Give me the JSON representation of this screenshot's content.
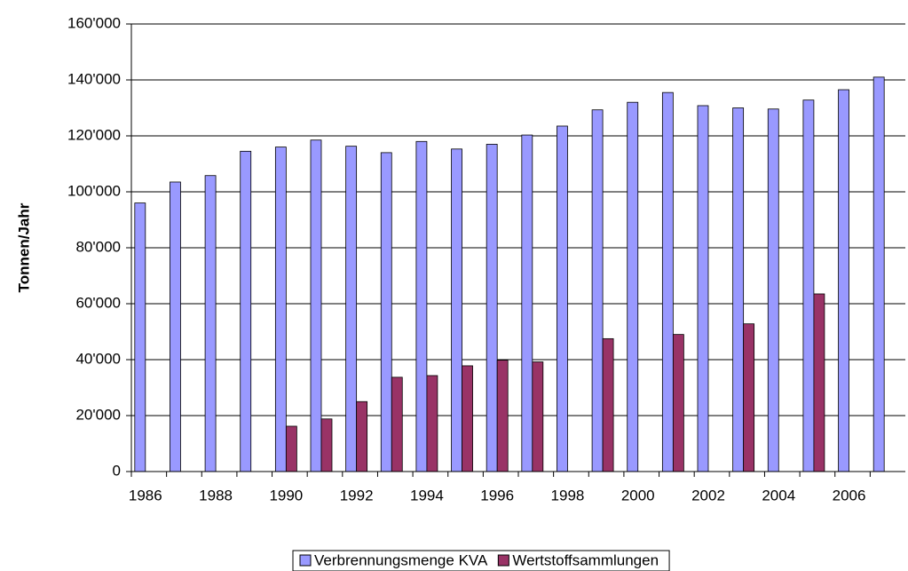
{
  "chart_data": {
    "type": "bar",
    "y_label": "Tonnen/Jahr",
    "categories": [
      "1986",
      null,
      "1988",
      null,
      "1990",
      null,
      "1992",
      null,
      "1994",
      null,
      "1996",
      null,
      "1998",
      null,
      "2000",
      null,
      "2002",
      null,
      "2004",
      null,
      "2006",
      null
    ],
    "series": [
      {
        "name": "Verbrennungsmenge KVA",
        "color": "#9999ff",
        "values": [
          96000,
          103500,
          105800,
          114500,
          116000,
          118500,
          116300,
          114000,
          118000,
          115300,
          117000,
          120300,
          123500,
          129300,
          132000,
          135500,
          130800,
          130000,
          129600,
          132800,
          136500,
          141000
        ]
      },
      {
        "name": "Wertstoffsammlungen",
        "color": "#993366",
        "values": [
          null,
          null,
          null,
          null,
          16200,
          18800,
          25000,
          33700,
          34300,
          37800,
          39800,
          39200,
          null,
          47500,
          null,
          49000,
          null,
          52800,
          null,
          63500,
          null,
          null
        ]
      }
    ],
    "ylim": [
      0,
      160000
    ],
    "yticks": [
      0,
      {
        "value": 20000,
        "label": "20'000"
      },
      {
        "value": 40000,
        "label": "40'000"
      },
      {
        "value": 60000,
        "label": "60'000"
      },
      {
        "value": 80000,
        "label": "80'000"
      },
      {
        "value": 100000,
        "label": "100'000"
      },
      {
        "value": 120000,
        "label": "120'000"
      },
      {
        "value": 140000,
        "label": "140'000"
      },
      {
        "value": 160000,
        "label": "160'000"
      }
    ],
    "grid": true,
    "legend": "bottom"
  }
}
